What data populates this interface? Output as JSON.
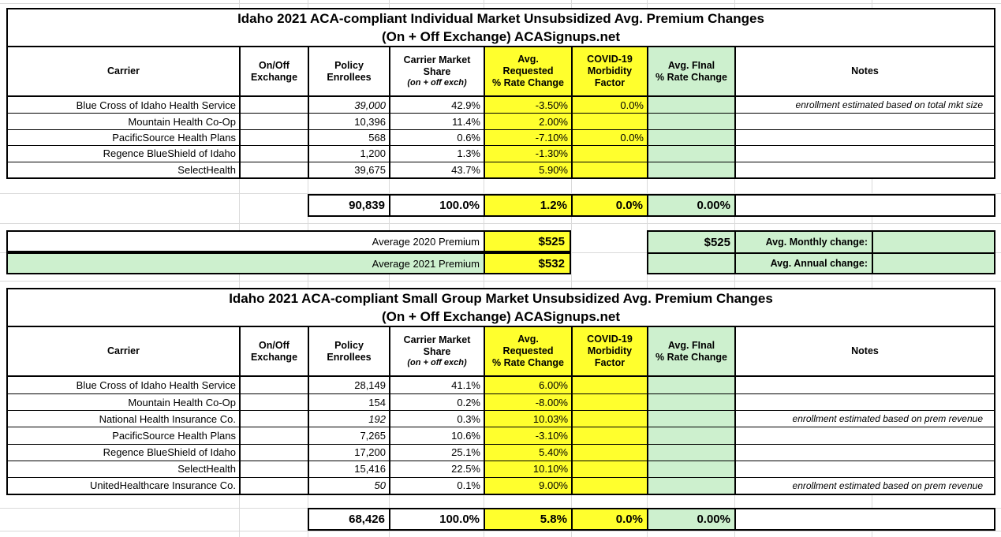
{
  "colors": {
    "yellow": "#FFFF2D",
    "green": "#CDF0CE",
    "grid_line": "#DADADA",
    "border": "#000000"
  },
  "column_headers": {
    "carrier": "Carrier",
    "exchange": "On/Off\nExchange",
    "enrollees": "Policy\nEnrollees",
    "share_main": "Carrier Market\nShare",
    "share_sub": "(on + off exch)",
    "requested": "Avg.\nRequested\n% Rate Change",
    "covid": "COVID-19\nMorbidity\nFactor",
    "final": "Avg. FInal\n% Rate Change",
    "notes": "Notes"
  },
  "tables": [
    {
      "title_line1": "Idaho 2021 ACA-compliant Individual Market Unsubsidized Avg. Premium Changes",
      "title_line2": "(On + Off Exchange) ACASignups.net",
      "rows": [
        {
          "carrier": "Blue Cross of Idaho Health Service",
          "exchange": "",
          "enrollees": "39,000",
          "enrollees_estimated": true,
          "share": "42.9%",
          "requested": "-3.50%",
          "covid": "0.0%",
          "final": "",
          "notes": "enrollment estimated based on total mkt size"
        },
        {
          "carrier": "Mountain Health Co-Op",
          "exchange": "",
          "enrollees": "10,396",
          "enrollees_estimated": false,
          "share": "11.4%",
          "requested": "2.00%",
          "covid": "",
          "final": "",
          "notes": ""
        },
        {
          "carrier": "PacificSource Health Plans",
          "exchange": "",
          "enrollees": "568",
          "enrollees_estimated": false,
          "share": "0.6%",
          "requested": "-7.10%",
          "covid": "0.0%",
          "final": "",
          "notes": ""
        },
        {
          "carrier": "Regence BlueShield of Idaho",
          "exchange": "",
          "enrollees": "1,200",
          "enrollees_estimated": false,
          "share": "1.3%",
          "requested": "-1.30%",
          "covid": "",
          "final": "",
          "notes": ""
        },
        {
          "carrier": "SelectHealth",
          "exchange": "",
          "enrollees": "39,675",
          "enrollees_estimated": false,
          "share": "43.7%",
          "requested": "5.90%",
          "covid": "",
          "final": "",
          "notes": ""
        }
      ],
      "totals": {
        "enrollees": "90,839",
        "share": "100.0%",
        "requested": "1.2%",
        "covid": "0.0%",
        "final": "0.00%",
        "notes": ""
      }
    },
    {
      "title_line1": "Idaho 2021 ACA-compliant Small Group Market Unsubsidized Avg. Premium Changes",
      "title_line2": "(On + Off Exchange) ACASignups.net",
      "rows": [
        {
          "carrier": "Blue Cross of Idaho Health Service",
          "exchange": "",
          "enrollees": "28,149",
          "enrollees_estimated": false,
          "share": "41.1%",
          "requested": "6.00%",
          "covid": "",
          "final": "",
          "notes": ""
        },
        {
          "carrier": "Mountain Health Co-Op",
          "exchange": "",
          "enrollees": "154",
          "enrollees_estimated": false,
          "share": "0.2%",
          "requested": "-8.00%",
          "covid": "",
          "final": "",
          "notes": ""
        },
        {
          "carrier": "National Health Insurance Co.",
          "exchange": "",
          "enrollees": "192",
          "enrollees_estimated": true,
          "share": "0.3%",
          "requested": "10.03%",
          "covid": "",
          "final": "",
          "notes": "enrollment estimated based on prem revenue"
        },
        {
          "carrier": "PacificSource Health Plans",
          "exchange": "",
          "enrollees": "7,265",
          "enrollees_estimated": false,
          "share": "10.6%",
          "requested": "-3.10%",
          "covid": "",
          "final": "",
          "notes": ""
        },
        {
          "carrier": "Regence BlueShield of Idaho",
          "exchange": "",
          "enrollees": "17,200",
          "enrollees_estimated": false,
          "share": "25.1%",
          "requested": "5.40%",
          "covid": "",
          "final": "",
          "notes": ""
        },
        {
          "carrier": "SelectHealth",
          "exchange": "",
          "enrollees": "15,416",
          "enrollees_estimated": false,
          "share": "22.5%",
          "requested": "10.10%",
          "covid": "",
          "final": "",
          "notes": ""
        },
        {
          "carrier": "UnitedHealthcare Insurance Co.",
          "exchange": "",
          "enrollees": "50",
          "enrollees_estimated": true,
          "share": "0.1%",
          "requested": "9.00%",
          "covid": "",
          "final": "",
          "notes": "enrollment estimated based on prem revenue"
        }
      ],
      "totals": {
        "enrollees": "68,426",
        "share": "100.0%",
        "requested": "5.8%",
        "covid": "0.0%",
        "final": "0.00%",
        "notes": ""
      }
    }
  ],
  "premium": {
    "rows": [
      {
        "label": "Average 2020 Premium",
        "value": "$525"
      },
      {
        "label": "Average 2021 Premium",
        "value": "$532"
      }
    ],
    "summary": {
      "value_2020": "$525",
      "value_2021": "",
      "monthly_label": "Avg. Monthly change:",
      "monthly_value": "",
      "annual_label": "Avg. Annual change:",
      "annual_value": ""
    }
  }
}
